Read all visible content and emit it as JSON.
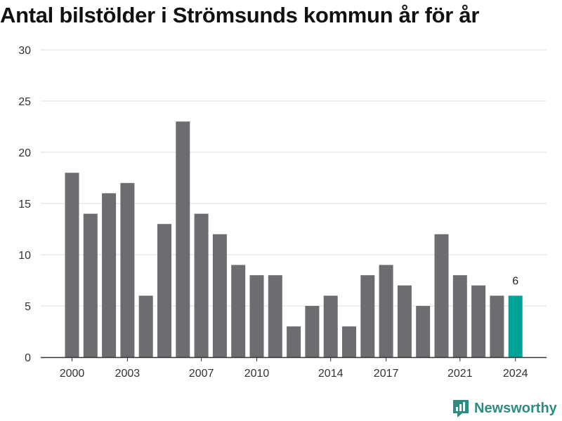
{
  "title": "Antal bilstölder i Strömsunds kommun år för år",
  "brand": {
    "name": "Newsworthy",
    "icon": "newsworthy-logo-icon",
    "color": "#2c8c82"
  },
  "chart_data": {
    "type": "bar",
    "title": "Antal bilstölder i Strömsunds kommun år för år",
    "xlabel": "",
    "ylabel": "",
    "ylim": [
      0,
      30
    ],
    "yticks": [
      0,
      5,
      10,
      15,
      20,
      25,
      30
    ],
    "grid": true,
    "categories": [
      2000,
      2001,
      2002,
      2003,
      2004,
      2005,
      2006,
      2007,
      2008,
      2009,
      2010,
      2011,
      2012,
      2013,
      2014,
      2015,
      2016,
      2017,
      2018,
      2019,
      2020,
      2021,
      2022,
      2023,
      2024
    ],
    "xtick_labels": [
      "2000",
      "2003",
      "2007",
      "2010",
      "2014",
      "2017",
      "2021",
      "2024"
    ],
    "values": [
      18,
      14,
      16,
      17,
      6,
      13,
      23,
      14,
      12,
      9,
      8,
      8,
      3,
      5,
      6,
      3,
      8,
      9,
      7,
      5,
      12,
      8,
      7,
      6,
      6
    ],
    "highlight": {
      "category": 2024,
      "value_label": "6"
    },
    "colors": {
      "bar": "#6d6c71",
      "highlight": "#00a398",
      "grid": "#dddddd",
      "axis": "#333333",
      "tick_text": "#333333"
    }
  }
}
